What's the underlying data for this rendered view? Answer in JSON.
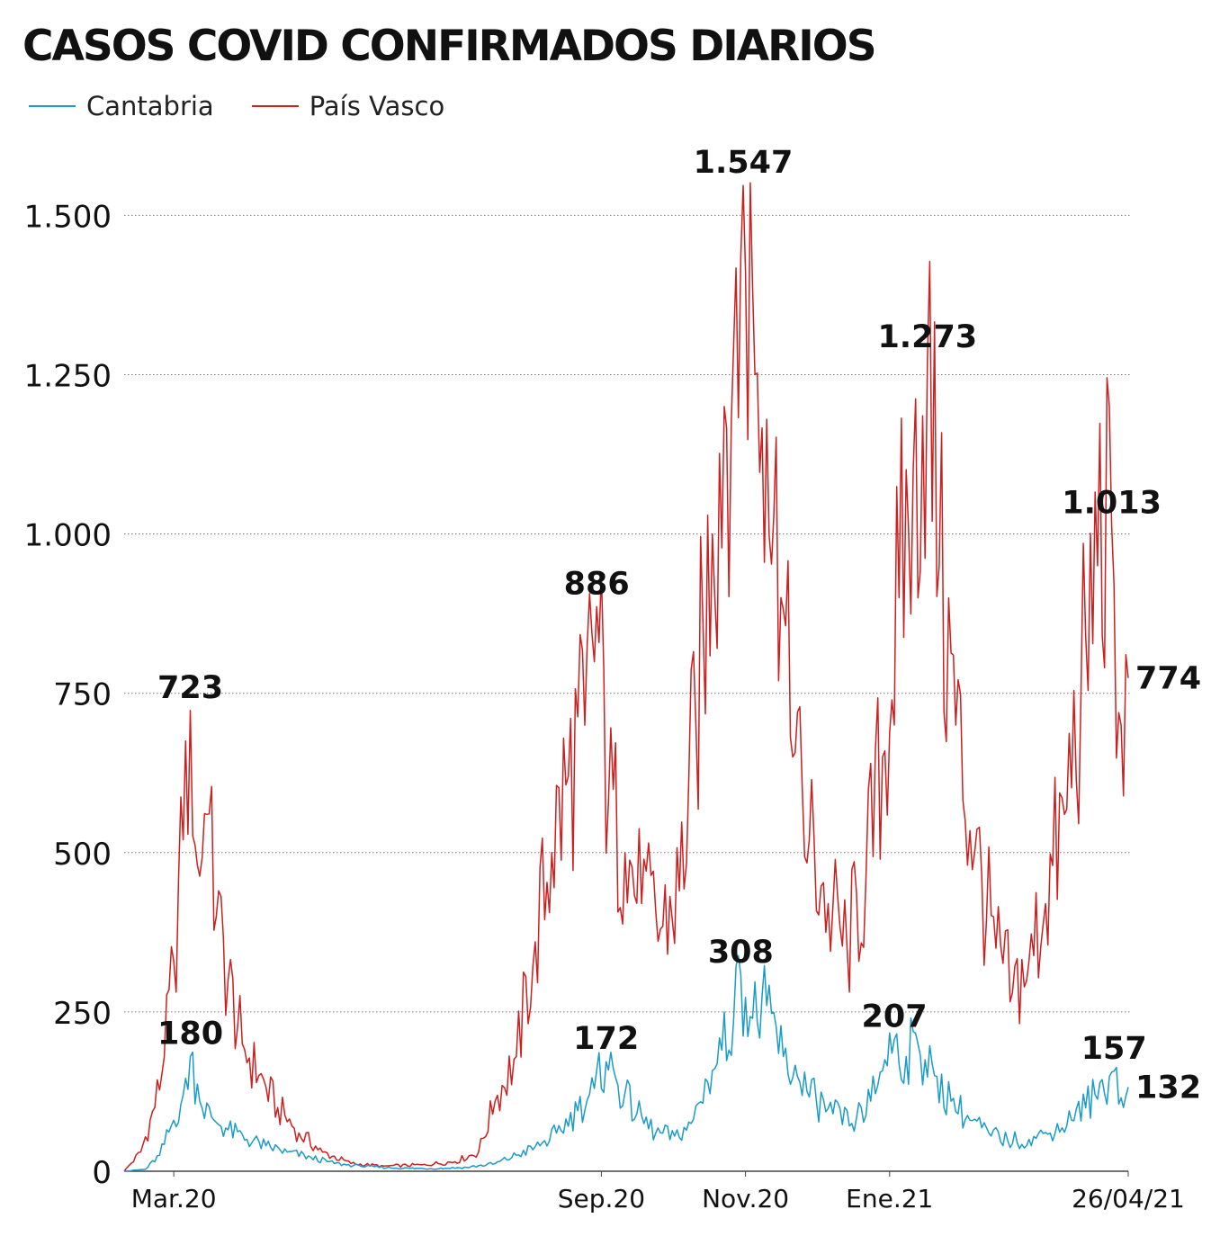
{
  "title": "CASOS COVID CONFIRMADOS DIARIOS",
  "colors": {
    "cantabria": "#1a9bc9",
    "pais_vasco": "#cc1f1f",
    "grid": "#777777",
    "text": "#111111"
  },
  "legend": [
    {
      "label": "Cantabria",
      "color": "#1a9bc9"
    },
    {
      "label": "País Vasco",
      "color": "#cc1f1f"
    }
  ],
  "chart_data": {
    "type": "line",
    "title": "CASOS COVID CONFIRMADOS DIARIOS",
    "xlabel": "",
    "ylabel": "",
    "ylim": [
      0,
      1547
    ],
    "yticks": [
      {
        "value": 0,
        "label": "0"
      },
      {
        "value": 250,
        "label": "250"
      },
      {
        "value": 500,
        "label": "500"
      },
      {
        "value": 750,
        "label": "750"
      },
      {
        "value": 1000,
        "label": "1.000"
      },
      {
        "value": 1250,
        "label": "1.250"
      },
      {
        "value": 1500,
        "label": "1.500"
      }
    ],
    "xlim": [
      "2020-02-26",
      "2021-04-26"
    ],
    "xticks": [
      {
        "date": "2020-03-18",
        "label": "Mar.20"
      },
      {
        "date": "2020-09-15",
        "label": "Sep.20"
      },
      {
        "date": "2020-11-15",
        "label": "Nov.20"
      },
      {
        "date": "2021-01-15",
        "label": "Ene.21"
      },
      {
        "date": "2021-04-26",
        "label": "26/04/21"
      }
    ],
    "grid": "horizontal dotted",
    "legend_position": "top-left",
    "series": [
      {
        "name": "Cantabria",
        "color": "#1a9bc9",
        "points": [
          [
            "2020-02-26",
            0
          ],
          [
            "2020-03-06",
            3
          ],
          [
            "2020-03-12",
            25
          ],
          [
            "2020-03-18",
            80
          ],
          [
            "2020-03-22",
            120
          ],
          [
            "2020-03-25",
            180
          ],
          [
            "2020-03-29",
            110
          ],
          [
            "2020-04-03",
            85
          ],
          [
            "2020-04-10",
            65
          ],
          [
            "2020-04-18",
            50
          ],
          [
            "2020-04-26",
            40
          ],
          [
            "2020-05-05",
            30
          ],
          [
            "2020-05-15",
            22
          ],
          [
            "2020-05-25",
            12
          ],
          [
            "2020-06-05",
            8
          ],
          [
            "2020-06-20",
            5
          ],
          [
            "2020-07-05",
            4
          ],
          [
            "2020-07-20",
            6
          ],
          [
            "2020-08-01",
            12
          ],
          [
            "2020-08-10",
            25
          ],
          [
            "2020-08-20",
            40
          ],
          [
            "2020-08-27",
            60
          ],
          [
            "2020-09-05",
            95
          ],
          [
            "2020-09-12",
            130
          ],
          [
            "2020-09-17",
            172
          ],
          [
            "2020-09-22",
            135
          ],
          [
            "2020-09-30",
            90
          ],
          [
            "2020-10-08",
            60
          ],
          [
            "2020-10-16",
            55
          ],
          [
            "2020-10-23",
            75
          ],
          [
            "2020-10-30",
            140
          ],
          [
            "2020-11-05",
            190
          ],
          [
            "2020-11-10",
            240
          ],
          [
            "2020-11-13",
            308
          ],
          [
            "2020-11-18",
            240
          ],
          [
            "2020-11-24",
            260
          ],
          [
            "2020-12-01",
            180
          ],
          [
            "2020-12-08",
            140
          ],
          [
            "2020-12-15",
            110
          ],
          [
            "2020-12-22",
            90
          ],
          [
            "2020-12-30",
            75
          ],
          [
            "2021-01-07",
            110
          ],
          [
            "2021-01-13",
            175
          ],
          [
            "2021-01-17",
            207
          ],
          [
            "2021-01-22",
            180
          ],
          [
            "2021-01-27",
            200
          ],
          [
            "2021-02-03",
            150
          ],
          [
            "2021-02-10",
            110
          ],
          [
            "2021-02-18",
            80
          ],
          [
            "2021-02-26",
            60
          ],
          [
            "2021-03-06",
            48
          ],
          [
            "2021-03-15",
            50
          ],
          [
            "2021-03-24",
            60
          ],
          [
            "2021-04-02",
            80
          ],
          [
            "2021-04-12",
            120
          ],
          [
            "2021-04-20",
            157
          ],
          [
            "2021-04-24",
            100
          ],
          [
            "2021-04-26",
            132
          ]
        ]
      },
      {
        "name": "País Vasco",
        "color": "#cc1f1f",
        "points": [
          [
            "2020-02-26",
            0
          ],
          [
            "2020-03-04",
            30
          ],
          [
            "2020-03-10",
            100
          ],
          [
            "2020-03-14",
            180
          ],
          [
            "2020-03-18",
            330
          ],
          [
            "2020-03-22",
            520
          ],
          [
            "2020-03-25",
            723
          ],
          [
            "2020-03-28",
            480
          ],
          [
            "2020-04-01",
            560
          ],
          [
            "2020-04-05",
            400
          ],
          [
            "2020-04-10",
            300
          ],
          [
            "2020-04-16",
            200
          ],
          [
            "2020-04-23",
            150
          ],
          [
            "2020-05-01",
            100
          ],
          [
            "2020-05-10",
            60
          ],
          [
            "2020-05-20",
            30
          ],
          [
            "2020-06-01",
            12
          ],
          [
            "2020-06-15",
            8
          ],
          [
            "2020-07-01",
            10
          ],
          [
            "2020-07-15",
            15
          ],
          [
            "2020-07-25",
            30
          ],
          [
            "2020-08-01",
            110
          ],
          [
            "2020-08-10",
            180
          ],
          [
            "2020-08-18",
            360
          ],
          [
            "2020-08-25",
            500
          ],
          [
            "2020-09-01",
            620
          ],
          [
            "2020-09-08",
            700
          ],
          [
            "2020-09-13",
            886
          ],
          [
            "2020-09-18",
            580
          ],
          [
            "2020-09-25",
            500
          ],
          [
            "2020-10-02",
            420
          ],
          [
            "2020-10-10",
            380
          ],
          [
            "2020-10-18",
            440
          ],
          [
            "2020-10-25",
            700
          ],
          [
            "2020-11-01",
            1000
          ],
          [
            "2020-11-06",
            1200
          ],
          [
            "2020-11-10",
            1300
          ],
          [
            "2020-11-14",
            1547
          ],
          [
            "2020-11-19",
            1250
          ],
          [
            "2020-11-24",
            1180
          ],
          [
            "2020-11-30",
            900
          ],
          [
            "2020-12-05",
            650
          ],
          [
            "2020-12-12",
            520
          ],
          [
            "2020-12-20",
            420
          ],
          [
            "2020-12-28",
            350
          ],
          [
            "2021-01-05",
            460
          ],
          [
            "2021-01-12",
            650
          ],
          [
            "2021-01-19",
            900
          ],
          [
            "2021-01-25",
            1100
          ],
          [
            "2021-01-31",
            1273
          ],
          [
            "2021-02-05",
            950
          ],
          [
            "2021-02-12",
            700
          ],
          [
            "2021-02-20",
            500
          ],
          [
            "2021-03-01",
            350
          ],
          [
            "2021-03-08",
            280
          ],
          [
            "2021-03-15",
            330
          ],
          [
            "2021-03-22",
            420
          ],
          [
            "2021-03-30",
            560
          ],
          [
            "2021-04-06",
            750
          ],
          [
            "2021-04-13",
            950
          ],
          [
            "2021-04-19",
            1013
          ],
          [
            "2021-04-23",
            700
          ],
          [
            "2021-04-26",
            774
          ]
        ]
      }
    ],
    "annotations": [
      {
        "series": "País Vasco",
        "date": "2020-03-25",
        "value": 723,
        "label": "723"
      },
      {
        "series": "Cantabria",
        "date": "2020-03-25",
        "value": 180,
        "label": "180"
      },
      {
        "series": "País Vasco",
        "date": "2020-09-13",
        "value": 886,
        "label": "886"
      },
      {
        "series": "Cantabria",
        "date": "2020-09-17",
        "value": 172,
        "label": "172"
      },
      {
        "series": "País Vasco",
        "date": "2020-11-14",
        "value": 1547,
        "label": "1.547"
      },
      {
        "series": "Cantabria",
        "date": "2020-11-13",
        "value": 308,
        "label": "308"
      },
      {
        "series": "País Vasco",
        "date": "2021-01-31",
        "value": 1273,
        "label": "1.273"
      },
      {
        "series": "Cantabria",
        "date": "2021-01-17",
        "value": 207,
        "label": "207"
      },
      {
        "series": "País Vasco",
        "date": "2021-04-19",
        "value": 1013,
        "label": "1.013"
      },
      {
        "series": "Cantabria",
        "date": "2021-04-20",
        "value": 157,
        "label": "157"
      },
      {
        "series": "País Vasco",
        "date": "2021-04-26",
        "value": 774,
        "label": "774"
      },
      {
        "series": "Cantabria",
        "date": "2021-04-26",
        "value": 132,
        "label": "132"
      }
    ]
  }
}
